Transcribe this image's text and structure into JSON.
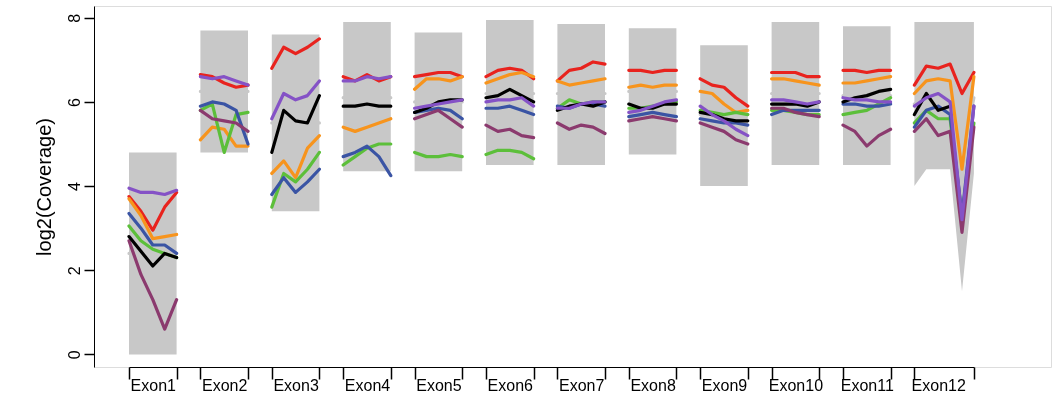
{
  "chart_data": {
    "type": "line",
    "ylabel": "log2(Coverage)",
    "categories": [
      null,
      null,
      "Exon1",
      null,
      null,
      null,
      null,
      null,
      "Exon2",
      null,
      null,
      null,
      null,
      null,
      "Exon3",
      null,
      null,
      null,
      null,
      null,
      "Exon4",
      null,
      null,
      null,
      null,
      null,
      "Exon5",
      null,
      null,
      null,
      null,
      null,
      "Exon6",
      null,
      null,
      null,
      null,
      null,
      "Exon7",
      null,
      null,
      null,
      null,
      null,
      "Exon8",
      null,
      null,
      null,
      null,
      null,
      "Exon9",
      null,
      null,
      null,
      null,
      null,
      "Exon10",
      null,
      null,
      null,
      null,
      null,
      "Exon11",
      null,
      null,
      null,
      null,
      null,
      "Exon12",
      null,
      null,
      null
    ],
    "ylim": [
      -0.3,
      8.28
    ],
    "yticks": [
      0,
      2,
      4,
      6,
      8
    ],
    "series": [
      {
        "color": "#c8c8c8",
        "values": [
          2.4,
          2.4,
          2.4,
          2.4,
          2.4,
          null,
          6.25,
          6.25,
          6.25,
          6.25,
          6.25,
          null,
          5.5,
          5.5,
          5.5,
          5.5,
          5.5,
          null,
          6.1,
          6.1,
          6.1,
          6.1,
          6.1,
          null,
          6.0,
          6.0,
          6.0,
          6.0,
          6.0,
          null,
          6.2,
          6.2,
          6.2,
          6.2,
          6.2,
          null,
          6.2,
          6.2,
          6.2,
          6.2,
          6.2,
          null,
          6.25,
          6.25,
          6.25,
          6.25,
          6.25,
          null,
          5.7,
          5.7,
          5.7,
          5.7,
          5.7,
          null,
          6.2,
          6.2,
          6.2,
          6.2,
          6.2,
          null,
          6.15,
          6.15,
          6.15,
          6.15,
          6.15,
          null,
          5.95,
          6.15,
          6.15,
          6.15,
          4.7,
          6.1
        ],
        "lower": [
          0,
          0,
          0,
          0,
          0,
          null,
          4.8,
          4.8,
          4.8,
          4.8,
          4.8,
          null,
          3.4,
          3.4,
          3.4,
          3.4,
          3.4,
          null,
          4.35,
          4.35,
          4.35,
          4.35,
          4.35,
          null,
          4.35,
          4.35,
          4.35,
          4.35,
          4.35,
          null,
          4.5,
          4.5,
          4.5,
          4.5,
          4.5,
          null,
          4.5,
          4.5,
          4.5,
          4.5,
          4.5,
          null,
          4.75,
          4.75,
          4.75,
          4.75,
          4.75,
          null,
          4,
          4,
          4,
          4,
          4,
          null,
          4.5,
          4.5,
          4.5,
          4.5,
          4.5,
          null,
          4.5,
          4.5,
          4.5,
          4.5,
          4.5,
          null,
          4,
          4.4,
          4.4,
          4.4,
          1.5,
          4.3
        ],
        "upper": [
          4.8,
          4.8,
          4.8,
          4.8,
          4.8,
          null,
          7.7,
          7.7,
          7.7,
          7.7,
          7.7,
          null,
          7.6,
          7.6,
          7.6,
          7.6,
          7.6,
          null,
          7.9,
          7.9,
          7.9,
          7.9,
          7.9,
          null,
          7.65,
          7.65,
          7.65,
          7.65,
          7.65,
          null,
          7.95,
          7.95,
          7.95,
          7.95,
          7.95,
          null,
          7.85,
          7.85,
          7.85,
          7.85,
          7.85,
          null,
          7.75,
          7.75,
          7.75,
          7.75,
          7.75,
          null,
          7.35,
          7.35,
          7.35,
          7.35,
          7.35,
          null,
          7.9,
          7.9,
          7.9,
          7.9,
          7.9,
          null,
          7.8,
          7.8,
          7.8,
          7.8,
          7.8,
          null,
          7.9,
          7.9,
          7.9,
          7.9,
          7.9,
          7.9
        ]
      },
      {
        "color": "#e8231e",
        "values": [
          3.75,
          3.4,
          2.95,
          3.5,
          3.85,
          null,
          6.65,
          6.6,
          6.45,
          6.35,
          6.4,
          null,
          6.8,
          7.3,
          7.15,
          7.3,
          7.5,
          null,
          6.6,
          6.5,
          6.65,
          6.5,
          6.6,
          null,
          6.6,
          6.65,
          6.7,
          6.7,
          6.6,
          null,
          6.6,
          6.75,
          6.8,
          6.75,
          6.55,
          null,
          6.5,
          6.75,
          6.8,
          6.95,
          6.9,
          null,
          6.75,
          6.75,
          6.7,
          6.75,
          6.75,
          null,
          6.55,
          6.4,
          6.35,
          6.1,
          5.9,
          null,
          6.7,
          6.7,
          6.7,
          6.6,
          6.6,
          null,
          6.75,
          6.75,
          6.7,
          6.75,
          6.75,
          null,
          6.4,
          6.85,
          6.8,
          6.9,
          6.2,
          6.7
        ]
      },
      {
        "color": "#f7941d",
        "values": [
          3.7,
          3.3,
          2.75,
          2.8,
          2.85,
          null,
          5.1,
          5.4,
          5.35,
          4.95,
          4.95,
          null,
          4.3,
          4.6,
          4.2,
          4.9,
          5.2,
          null,
          5.4,
          5.3,
          5.4,
          5.5,
          5.6,
          null,
          6.3,
          6.55,
          6.55,
          6.5,
          6.6,
          null,
          6.45,
          6.55,
          6.65,
          6.7,
          6.6,
          null,
          6.5,
          6.4,
          6.45,
          6.5,
          6.55,
          null,
          6.35,
          6.4,
          6.35,
          6.4,
          6.4,
          null,
          6.25,
          6.2,
          5.95,
          5.75,
          5.8,
          null,
          6.55,
          6.55,
          6.5,
          6.45,
          6.4,
          null,
          6.45,
          6.45,
          6.5,
          6.55,
          6.6,
          null,
          6.2,
          6.5,
          6.55,
          6.5,
          4.4,
          6.6
        ]
      },
      {
        "color": "#5cbf3a",
        "values": [
          3.05,
          2.7,
          2.5,
          2.4,
          2.3,
          null,
          5.8,
          5.95,
          4.8,
          5.7,
          5.75,
          null,
          3.5,
          4.3,
          4.1,
          4.4,
          4.8,
          null,
          4.5,
          4.7,
          4.9,
          5,
          5,
          null,
          4.8,
          4.7,
          4.7,
          4.75,
          4.7,
          null,
          4.75,
          4.85,
          4.85,
          4.8,
          4.65,
          null,
          5.85,
          6.05,
          5.95,
          6,
          6,
          null,
          5.85,
          5.85,
          5.9,
          5.95,
          6,
          null,
          5.8,
          5.75,
          5.7,
          5.75,
          5.7,
          null,
          5.8,
          5.8,
          5.75,
          5.7,
          5.7,
          null,
          5.7,
          5.75,
          5.8,
          5.95,
          6.1,
          null,
          5.5,
          5.8,
          5.6,
          5.6,
          3.3,
          5.5
        ]
      },
      {
        "color": "#3a54a4",
        "values": [
          3.35,
          3,
          2.6,
          2.6,
          2.4,
          null,
          5.9,
          6,
          5.95,
          5.8,
          5,
          null,
          3.8,
          4.2,
          3.85,
          4.1,
          4.4,
          null,
          4.7,
          4.8,
          4.95,
          4.7,
          4.25,
          null,
          5.75,
          5.8,
          5.85,
          5.8,
          5.6,
          null,
          5.85,
          5.85,
          5.9,
          5.8,
          5.7,
          null,
          5.9,
          5.85,
          5.95,
          5.95,
          5.9,
          null,
          5.65,
          5.7,
          5.75,
          5.7,
          5.65,
          null,
          5.6,
          5.55,
          5.5,
          5.5,
          5.45,
          null,
          5.7,
          5.8,
          5.8,
          5.8,
          5.8,
          null,
          5.95,
          5.95,
          5.9,
          5.9,
          5.95,
          null,
          5.4,
          5.8,
          5.9,
          5.7,
          3.3,
          5.9
        ]
      },
      {
        "color": "#8b3a6e",
        "values": [
          2.7,
          1.9,
          1.3,
          0.6,
          1.3,
          null,
          5.8,
          5.6,
          5.55,
          5.5,
          5.3,
          null,
          null,
          null,
          null,
          null,
          null,
          null,
          null,
          null,
          null,
          null,
          null,
          null,
          5.6,
          5.7,
          5.8,
          5.6,
          5.4,
          null,
          5.45,
          5.3,
          5.35,
          5.2,
          5.15,
          null,
          5.5,
          5.35,
          5.45,
          5.4,
          5.25,
          null,
          5.55,
          5.6,
          5.65,
          5.6,
          5.55,
          null,
          5.5,
          5.4,
          5.3,
          5.1,
          5,
          null,
          5.85,
          5.85,
          5.75,
          5.7,
          5.65,
          null,
          5.45,
          5.3,
          4.95,
          5.2,
          5.35,
          null,
          5.3,
          5.6,
          5.2,
          5.3,
          2.9,
          5.4
        ]
      },
      {
        "color": "#000000",
        "values": [
          2.8,
          2.45,
          2.1,
          2.4,
          2.3,
          null,
          null,
          null,
          null,
          null,
          null,
          null,
          4.8,
          5.8,
          5.55,
          5.5,
          6.15,
          null,
          5.9,
          5.9,
          5.95,
          5.9,
          5.9,
          null,
          5.75,
          5.85,
          6,
          6.05,
          6.05,
          null,
          6.1,
          6.15,
          6.3,
          6.15,
          6,
          null,
          5.8,
          5.9,
          5.95,
          5.9,
          6,
          null,
          5.95,
          5.85,
          5.85,
          5.95,
          5.95,
          null,
          5.75,
          5.7,
          5.6,
          5.55,
          5.55,
          null,
          5.95,
          5.95,
          5.95,
          5.9,
          6,
          null,
          6,
          6.1,
          6.15,
          6.25,
          6.3,
          null,
          5.7,
          6.2,
          5.8,
          5.9,
          null,
          null
        ]
      },
      {
        "color": "#8552c6",
        "values": [
          3.95,
          3.85,
          3.85,
          3.8,
          3.9,
          null,
          6.6,
          6.55,
          6.6,
          6.5,
          6.4,
          null,
          5.6,
          6.2,
          6.05,
          6.15,
          6.5,
          null,
          6.5,
          6.5,
          6.6,
          6.55,
          6.6,
          null,
          5.85,
          5.9,
          5.95,
          6,
          6.05,
          null,
          6,
          6.05,
          6.05,
          6.1,
          5.9,
          null,
          5.85,
          5.85,
          5.95,
          6,
          6,
          null,
          5.75,
          5.8,
          5.9,
          6,
          6.05,
          null,
          5.9,
          5.7,
          5.55,
          5.35,
          5.2,
          null,
          6.05,
          6.05,
          6,
          5.95,
          6,
          null,
          6.1,
          6.05,
          6.05,
          6,
          6,
          null,
          5.9,
          6.1,
          6.2,
          6,
          3.2,
          5.9
        ]
      }
    ]
  }
}
